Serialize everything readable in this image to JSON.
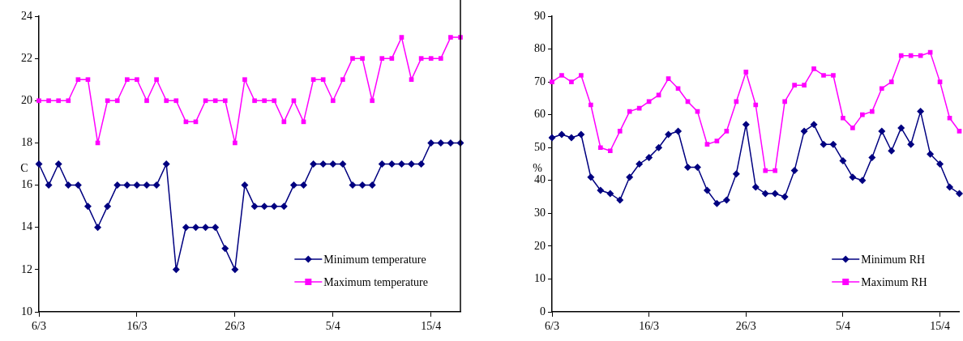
{
  "chart_data": [
    {
      "type": "line",
      "ylabel": "C",
      "categories": [
        "6/3",
        null,
        null,
        null,
        null,
        null,
        null,
        null,
        null,
        null,
        "16/3",
        null,
        null,
        null,
        null,
        null,
        null,
        null,
        null,
        null,
        "26/3",
        null,
        null,
        null,
        null,
        null,
        null,
        null,
        null,
        null,
        "5/4",
        null,
        null,
        null,
        null,
        null,
        null,
        null,
        null,
        null,
        "15/4",
        null,
        null,
        null
      ],
      "series": [
        {
          "name": "Minimum temperature",
          "color": "#000080",
          "marker": "diamond",
          "values": [
            17,
            16,
            17,
            16,
            16,
            15,
            14,
            15,
            16,
            16,
            16,
            16,
            16,
            17,
            12,
            14,
            14,
            14,
            14,
            13,
            12,
            16,
            15,
            15,
            15,
            15,
            16,
            16,
            17,
            17,
            17,
            17,
            16,
            16,
            16,
            17,
            17,
            17,
            17,
            17,
            18,
            18,
            18,
            18
          ]
        },
        {
          "name": "Maximum temperature",
          "color": "#ff00ff",
          "marker": "square",
          "values": [
            20,
            20,
            20,
            20,
            21,
            21,
            18,
            20,
            20,
            21,
            21,
            20,
            21,
            20,
            20,
            19,
            19,
            20,
            20,
            20,
            18,
            21,
            20,
            20,
            20,
            19,
            20,
            19,
            21,
            21,
            20,
            21,
            22,
            22,
            20,
            22,
            22,
            23,
            21,
            22,
            22,
            22,
            23,
            23
          ]
        }
      ],
      "ylim": [
        10,
        24
      ],
      "yticks": [
        10,
        12,
        14,
        16,
        18,
        20,
        22,
        24
      ],
      "legend": "bottom right",
      "grid": false
    },
    {
      "type": "line",
      "ylabel": "%",
      "categories": [
        "6/3",
        null,
        null,
        null,
        null,
        null,
        null,
        null,
        null,
        null,
        "16/3",
        null,
        null,
        null,
        null,
        null,
        null,
        null,
        null,
        null,
        "26/3",
        null,
        null,
        null,
        null,
        null,
        null,
        null,
        null,
        null,
        "5/4",
        null,
        null,
        null,
        null,
        null,
        null,
        null,
        null,
        null,
        "15/4",
        null,
        null
      ],
      "series": [
        {
          "name": "Minimum RH",
          "color": "#000080",
          "marker": "diamond",
          "values": [
            53,
            54,
            53,
            54,
            41,
            37,
            36,
            34,
            41,
            45,
            47,
            50,
            54,
            55,
            44,
            44,
            37,
            33,
            34,
            42,
            57,
            38,
            36,
            36,
            35,
            43,
            55,
            57,
            51,
            51,
            46,
            41,
            40,
            47,
            55,
            49,
            56,
            51,
            61,
            48,
            45,
            38,
            36
          ]
        },
        {
          "name": "Maximum RH",
          "color": "#ff00ff",
          "marker": "square",
          "values": [
            70,
            72,
            70,
            72,
            63,
            50,
            49,
            55,
            61,
            62,
            64,
            66,
            71,
            68,
            64,
            61,
            51,
            52,
            55,
            64,
            73,
            63,
            43,
            43,
            64,
            69,
            69,
            74,
            72,
            72,
            59,
            56,
            60,
            61,
            68,
            70,
            78,
            78,
            78,
            79,
            70,
            59,
            55
          ]
        }
      ],
      "ylim": [
        0,
        90
      ],
      "yticks": [
        0,
        10,
        20,
        30,
        40,
        50,
        60,
        70,
        80,
        90
      ],
      "legend": "bottom right",
      "grid": false
    }
  ]
}
